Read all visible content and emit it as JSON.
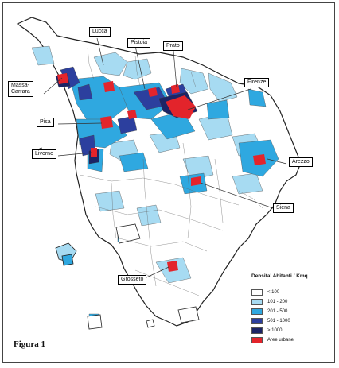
{
  "figure_label": "Figura 1",
  "cities": [
    {
      "id": "lucca",
      "label": "Lucca"
    },
    {
      "id": "pistoia",
      "label": "Pistoia"
    },
    {
      "id": "prato",
      "label": "Prato"
    },
    {
      "id": "massa",
      "label": "Massa-\nCarrara"
    },
    {
      "id": "firenze",
      "label": "Firenze"
    },
    {
      "id": "pisa",
      "label": "Pisa"
    },
    {
      "id": "livorno",
      "label": "Livorno"
    },
    {
      "id": "arezzo",
      "label": "Arezzo"
    },
    {
      "id": "siena",
      "label": "Siena"
    },
    {
      "id": "grosseto",
      "label": "Grosseto"
    }
  ],
  "legend": {
    "title": "Densita' Abitanti / Kmq",
    "classes": [
      {
        "label": "< 100",
        "color": "#ffffff"
      },
      {
        "label": "101 - 200",
        "color": "#a7dbf2"
      },
      {
        "label": "201 - 500",
        "color": "#2fa8e0"
      },
      {
        "label": "501 - 1000",
        "color": "#2c3f9e"
      },
      {
        "label": "> 1000",
        "color": "#1b2466"
      },
      {
        "label": "Aree urbane",
        "color": "#e3242b"
      }
    ]
  },
  "colors": {
    "border": "#555555",
    "outline": "#222222"
  }
}
